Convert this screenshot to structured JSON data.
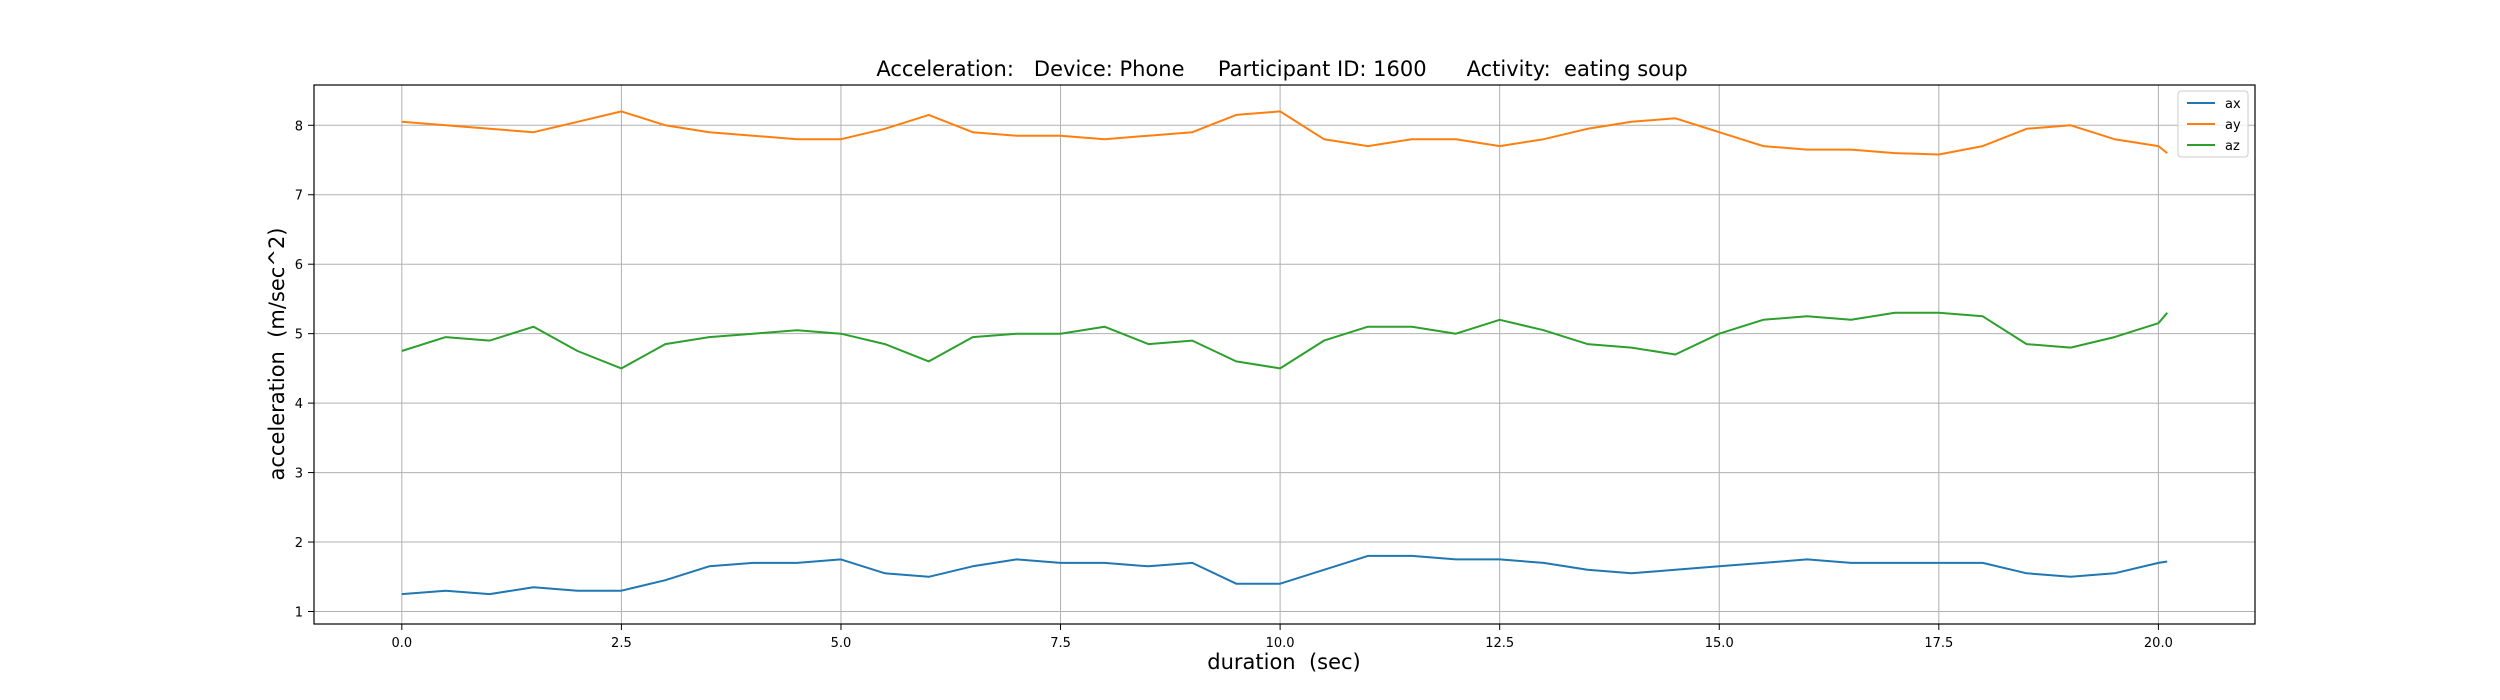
{
  "chart_data": {
    "type": "line",
    "title": "Acceleration:   Device: Phone     Participant ID: 1600      Activity:  eating soup",
    "xlabel": "duration  (sec)",
    "ylabel": "acceleration  (m/sec^2)",
    "xlim": [
      -1.0,
      21.1
    ],
    "ylim": [
      0.82,
      8.58
    ],
    "xticks": [
      0.0,
      2.5,
      5.0,
      7.5,
      10.0,
      12.5,
      15.0,
      17.5,
      20.0
    ],
    "xtick_labels": [
      "0.0",
      "2.5",
      "5.0",
      "7.5",
      "10.0",
      "12.5",
      "15.0",
      "17.5",
      "20.0"
    ],
    "yticks": [
      1,
      2,
      3,
      4,
      5,
      6,
      7,
      8
    ],
    "ytick_labels": [
      "1",
      "2",
      "3",
      "4",
      "5",
      "6",
      "7",
      "8"
    ],
    "grid": true,
    "legend_position": "top-right",
    "colors": {
      "ax": "#1f77b4",
      "ay": "#ff7f0e",
      "az": "#2ca02c"
    },
    "x": [
      0.0,
      0.5,
      1.0,
      1.5,
      2.0,
      2.5,
      3.0,
      3.5,
      4.0,
      4.5,
      5.0,
      5.5,
      6.0,
      6.5,
      7.0,
      7.5,
      8.0,
      8.5,
      9.0,
      9.5,
      10.0,
      10.5,
      11.0,
      11.5,
      12.0,
      12.5,
      13.0,
      13.5,
      14.0,
      14.5,
      15.0,
      15.5,
      16.0,
      16.5,
      17.0,
      17.5,
      18.0,
      18.5,
      19.0,
      19.5,
      20.0,
      20.1
    ],
    "series": [
      {
        "name": "ax",
        "values": [
          1.25,
          1.3,
          1.25,
          1.35,
          1.3,
          1.3,
          1.45,
          1.65,
          1.7,
          1.7,
          1.75,
          1.55,
          1.5,
          1.65,
          1.75,
          1.7,
          1.7,
          1.65,
          1.7,
          1.4,
          1.4,
          1.6,
          1.8,
          1.8,
          1.75,
          1.75,
          1.7,
          1.6,
          1.55,
          1.6,
          1.65,
          1.7,
          1.75,
          1.7,
          1.7,
          1.7,
          1.7,
          1.55,
          1.5,
          1.55,
          1.7,
          1.72
        ]
      },
      {
        "name": "ay",
        "values": [
          8.05,
          8.0,
          7.95,
          7.9,
          8.05,
          8.2,
          8.0,
          7.9,
          7.85,
          7.8,
          7.8,
          7.95,
          8.15,
          7.9,
          7.85,
          7.85,
          7.8,
          7.85,
          7.9,
          8.15,
          8.2,
          7.8,
          7.7,
          7.8,
          7.8,
          7.7,
          7.8,
          7.95,
          8.05,
          8.1,
          7.9,
          7.7,
          7.65,
          7.65,
          7.6,
          7.58,
          7.7,
          7.95,
          8.0,
          7.8,
          7.7,
          7.6
        ]
      },
      {
        "name": "az",
        "values": [
          4.75,
          4.95,
          4.9,
          5.1,
          4.75,
          4.5,
          4.85,
          4.95,
          5.0,
          5.05,
          5.0,
          4.85,
          4.6,
          4.95,
          5.0,
          5.0,
          5.1,
          4.85,
          4.9,
          4.6,
          4.5,
          4.9,
          5.1,
          5.1,
          5.0,
          5.2,
          5.05,
          4.85,
          4.8,
          4.7,
          5.0,
          5.2,
          5.25,
          5.2,
          5.3,
          5.3,
          5.25,
          4.85,
          4.8,
          4.95,
          5.15,
          5.3
        ]
      }
    ]
  }
}
